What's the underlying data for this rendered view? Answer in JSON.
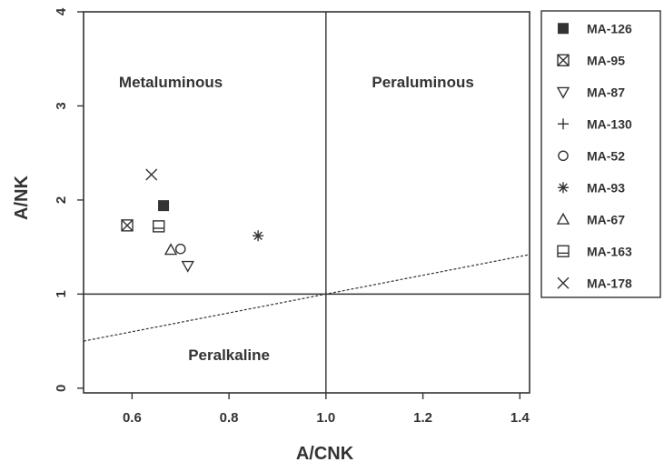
{
  "chart_data": {
    "type": "scatter",
    "xlabel": "A/CNK",
    "ylabel": "A/NK",
    "xlim": [
      0.5,
      1.42
    ],
    "ylim": [
      -0.05,
      4.0
    ],
    "x_ticks": [
      "0.6",
      "0.8",
      "1.0",
      "1.2",
      "1.4"
    ],
    "y_ticks": [
      "0",
      "1",
      "2",
      "3",
      "4"
    ],
    "x_tick_values": [
      0.6,
      0.8,
      1.0,
      1.2,
      1.4
    ],
    "y_tick_values": [
      0,
      1,
      2,
      3,
      4
    ],
    "regions": [
      {
        "label": "Metaluminous",
        "x": 0.68,
        "y": 3.2
      },
      {
        "label": "Peraluminous",
        "x": 1.2,
        "y": 3.2
      },
      {
        "label": "Peralkaline",
        "x": 0.8,
        "y": 0.3
      }
    ],
    "reference_lines": {
      "vertical_x": 1.0,
      "horizontal_y": 1.0,
      "dashed_line": [
        [
          0.5,
          0.5
        ],
        [
          1.42,
          1.42
        ]
      ]
    },
    "grid": false,
    "legend_position": "right",
    "series": [
      {
        "name": "MA-126",
        "marker": "filled-square",
        "points": [
          [
            0.665,
            1.94
          ]
        ]
      },
      {
        "name": "MA-95",
        "marker": "square-x",
        "points": [
          [
            0.59,
            1.73
          ]
        ]
      },
      {
        "name": "MA-87",
        "marker": "triangle-down",
        "points": [
          [
            0.715,
            1.3
          ]
        ]
      },
      {
        "name": "MA-130",
        "marker": "plus",
        "points": []
      },
      {
        "name": "MA-52",
        "marker": "circle",
        "points": [
          [
            0.7,
            1.48
          ]
        ]
      },
      {
        "name": "MA-93",
        "marker": "asterisk",
        "points": [
          [
            0.86,
            1.62
          ]
        ]
      },
      {
        "name": "MA-67",
        "marker": "triangle-up",
        "points": [
          [
            0.68,
            1.47
          ]
        ]
      },
      {
        "name": "MA-163",
        "marker": "square-box",
        "points": [
          [
            0.655,
            1.72
          ]
        ]
      },
      {
        "name": "MA-178",
        "marker": "x",
        "points": [
          [
            0.64,
            2.27
          ]
        ]
      }
    ]
  }
}
